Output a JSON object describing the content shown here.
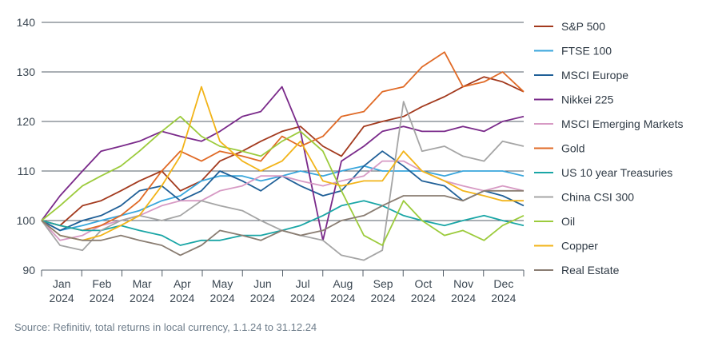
{
  "source_note": "Source: Refinitiv, total returns in local currency, 1.1.24 to 31.12.24",
  "chart_data": {
    "type": "line",
    "ylim": [
      90,
      140
    ],
    "yticks": [
      90,
      100,
      110,
      120,
      130,
      140
    ],
    "grid": "horizontal",
    "legend_position": "right",
    "months": [
      {
        "month": "Jan",
        "year": "2024"
      },
      {
        "month": "Feb",
        "year": "2024"
      },
      {
        "month": "Mar",
        "year": "2024"
      },
      {
        "month": "Apr",
        "year": "2024"
      },
      {
        "month": "May",
        "year": "2024"
      },
      {
        "month": "Jun",
        "year": "2024"
      },
      {
        "month": "Jul",
        "year": "2024"
      },
      {
        "month": "Aug",
        "year": "2024"
      },
      {
        "month": "Sep",
        "year": "2024"
      },
      {
        "month": "Oct",
        "year": "2024"
      },
      {
        "month": "Nov",
        "year": "2024"
      },
      {
        "month": "Dec",
        "year": "2024"
      }
    ],
    "x": [
      "2024-01-01",
      "2024-01-15",
      "2024-02-01",
      "2024-02-15",
      "2024-03-01",
      "2024-03-15",
      "2024-04-01",
      "2024-04-15",
      "2024-05-01",
      "2024-05-15",
      "2024-06-01",
      "2024-06-15",
      "2024-07-01",
      "2024-07-15",
      "2024-08-01",
      "2024-08-15",
      "2024-09-01",
      "2024-09-15",
      "2024-10-01",
      "2024-10-15",
      "2024-11-01",
      "2024-11-15",
      "2024-12-01",
      "2024-12-15",
      "2024-12-31"
    ],
    "series": [
      {
        "name": "S&P 500",
        "color": "#a33a1e",
        "values": [
          100,
          99,
          103,
          104,
          106,
          108,
          110,
          106,
          108,
          112,
          114,
          116,
          118,
          119,
          115,
          113,
          119,
          120,
          121,
          123,
          125,
          127,
          129,
          128,
          126
        ]
      },
      {
        "name": "FTSE 100",
        "color": "#39a6dc",
        "values": [
          100,
          98,
          99,
          100,
          101,
          102,
          104,
          105,
          108,
          109,
          109,
          108,
          109,
          110,
          109,
          110,
          111,
          110,
          110,
          110,
          109,
          110,
          110,
          110,
          109
        ]
      },
      {
        "name": "MSCI Europe",
        "color": "#1f5f97",
        "values": [
          100,
          98,
          100,
          101,
          103,
          106,
          107,
          104,
          106,
          110,
          108,
          106,
          109,
          107,
          105,
          106,
          111,
          114,
          111,
          108,
          107,
          104,
          106,
          105,
          103
        ]
      },
      {
        "name": "Nikkei 225",
        "color": "#7a2a8a",
        "values": [
          100,
          105,
          110,
          114,
          115,
          116,
          118,
          117,
          116,
          118,
          121,
          122,
          127,
          118,
          96,
          112,
          115,
          118,
          119,
          118,
          118,
          119,
          118,
          120,
          121
        ]
      },
      {
        "name": "MSCI Emerging Markets",
        "color": "#d79ac4",
        "values": [
          100,
          96,
          97,
          99,
          100,
          101,
          103,
          104,
          104,
          106,
          107,
          109,
          109,
          108,
          107,
          108,
          109,
          112,
          112,
          110,
          108,
          107,
          106,
          107,
          106
        ]
      },
      {
        "name": "Gold",
        "color": "#e06a26",
        "values": [
          100,
          99,
          98,
          99,
          101,
          104,
          110,
          114,
          112,
          114,
          113,
          112,
          117,
          115,
          117,
          121,
          122,
          126,
          127,
          131,
          134,
          127,
          128,
          130,
          126
        ]
      },
      {
        "name": "US 10 year Treasuries",
        "color": "#1aa6a6",
        "values": [
          100,
          99,
          98,
          98,
          99,
          98,
          97,
          95,
          96,
          96,
          97,
          97,
          98,
          99,
          101,
          103,
          104,
          103,
          101,
          100,
          99,
          100,
          101,
          100,
          99
        ]
      },
      {
        "name": "China CSI 300",
        "color": "#a5a5a5",
        "values": [
          100,
          95,
          94,
          98,
          100,
          101,
          100,
          101,
          104,
          103,
          102,
          100,
          98,
          97,
          96,
          93,
          92,
          94,
          124,
          114,
          115,
          113,
          112,
          116,
          115
        ]
      },
      {
        "name": "Oil",
        "color": "#9ccb3c",
        "values": [
          100,
          103,
          107,
          109,
          111,
          114,
          118,
          121,
          117,
          115,
          114,
          113,
          116,
          118,
          114,
          106,
          97,
          95,
          104,
          100,
          97,
          98,
          96,
          99,
          101
        ]
      },
      {
        "name": "Copper",
        "color": "#f2b419",
        "values": [
          100,
          97,
          96,
          97,
          99,
          101,
          107,
          113,
          127,
          116,
          112,
          110,
          112,
          116,
          108,
          107,
          108,
          108,
          114,
          110,
          108,
          106,
          105,
          104,
          104
        ]
      },
      {
        "name": "Real Estate",
        "color": "#8a7d72",
        "values": [
          100,
          97,
          96,
          96,
          97,
          96,
          95,
          93,
          95,
          98,
          97,
          96,
          98,
          97,
          98,
          100,
          101,
          103,
          105,
          105,
          105,
          104,
          106,
          106,
          106
        ]
      }
    ]
  }
}
